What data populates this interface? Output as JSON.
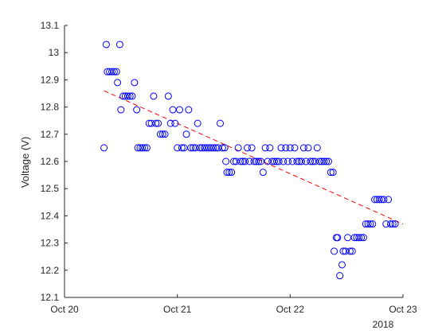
{
  "chart_data": {
    "type": "scatter",
    "title": "",
    "ylabel": "Voltage (V)",
    "xlabel": "",
    "x_secondary_label": "2018",
    "xlim_days": [
      20,
      23
    ],
    "ylim": [
      12.1,
      13.1
    ],
    "grid": false,
    "x_ticks": [
      {
        "day": 20,
        "label": "Oct 20"
      },
      {
        "day": 21,
        "label": "Oct 21"
      },
      {
        "day": 22,
        "label": "Oct 22"
      },
      {
        "day": 23,
        "label": "Oct 23"
      }
    ],
    "y_ticks": [
      {
        "value": 12.1,
        "label": "12.1"
      },
      {
        "value": 12.2,
        "label": "12.2"
      },
      {
        "value": 12.3,
        "label": "12.3"
      },
      {
        "value": 12.4,
        "label": "12.4"
      },
      {
        "value": 12.5,
        "label": "12.5"
      },
      {
        "value": 12.6,
        "label": "12.6"
      },
      {
        "value": 12.7,
        "label": "12.7"
      },
      {
        "value": 12.8,
        "label": "12.8"
      },
      {
        "value": 12.9,
        "label": "12.9"
      },
      {
        "value": 13.0,
        "label": "13"
      },
      {
        "value": 13.1,
        "label": "13.1"
      }
    ],
    "series": [
      {
        "marker": "circle",
        "color": "#0000ff",
        "points": [
          [
            20.35,
            12.65
          ],
          [
            20.37,
            13.03
          ],
          [
            20.38,
            12.93
          ],
          [
            20.4,
            12.93
          ],
          [
            20.42,
            12.93
          ],
          [
            20.44,
            12.93
          ],
          [
            20.46,
            12.93
          ],
          [
            20.47,
            12.89
          ],
          [
            20.49,
            13.03
          ],
          [
            20.5,
            12.79
          ],
          [
            20.52,
            12.84
          ],
          [
            20.54,
            12.84
          ],
          [
            20.56,
            12.84
          ],
          [
            20.58,
            12.84
          ],
          [
            20.6,
            12.84
          ],
          [
            20.62,
            12.89
          ],
          [
            20.64,
            12.79
          ],
          [
            20.65,
            12.65
          ],
          [
            20.67,
            12.65
          ],
          [
            20.69,
            12.65
          ],
          [
            20.71,
            12.65
          ],
          [
            20.73,
            12.65
          ],
          [
            20.75,
            12.74
          ],
          [
            20.77,
            12.74
          ],
          [
            20.79,
            12.84
          ],
          [
            20.81,
            12.74
          ],
          [
            20.83,
            12.74
          ],
          [
            20.85,
            12.7
          ],
          [
            20.87,
            12.7
          ],
          [
            20.89,
            12.7
          ],
          [
            20.92,
            12.84
          ],
          [
            20.94,
            12.74
          ],
          [
            20.96,
            12.79
          ],
          [
            20.98,
            12.74
          ],
          [
            21.0,
            12.65
          ],
          [
            21.02,
            12.79
          ],
          [
            21.04,
            12.65
          ],
          [
            21.06,
            12.65
          ],
          [
            21.08,
            12.7
          ],
          [
            21.1,
            12.79
          ],
          [
            21.12,
            12.65
          ],
          [
            21.14,
            12.65
          ],
          [
            21.16,
            12.65
          ],
          [
            21.18,
            12.74
          ],
          [
            21.2,
            12.65
          ],
          [
            21.22,
            12.65
          ],
          [
            21.24,
            12.65
          ],
          [
            21.26,
            12.65
          ],
          [
            21.28,
            12.65
          ],
          [
            21.3,
            12.65
          ],
          [
            21.32,
            12.65
          ],
          [
            21.34,
            12.65
          ],
          [
            21.36,
            12.65
          ],
          [
            21.38,
            12.74
          ],
          [
            21.4,
            12.65
          ],
          [
            21.42,
            12.65
          ],
          [
            21.43,
            12.6
          ],
          [
            21.44,
            12.56
          ],
          [
            21.46,
            12.56
          ],
          [
            21.48,
            12.56
          ],
          [
            21.5,
            12.6
          ],
          [
            21.52,
            12.6
          ],
          [
            21.54,
            12.65
          ],
          [
            21.56,
            12.6
          ],
          [
            21.58,
            12.6
          ],
          [
            21.6,
            12.6
          ],
          [
            21.62,
            12.65
          ],
          [
            21.64,
            12.6
          ],
          [
            21.66,
            12.65
          ],
          [
            21.68,
            12.6
          ],
          [
            21.7,
            12.6
          ],
          [
            21.72,
            12.6
          ],
          [
            21.74,
            12.6
          ],
          [
            21.76,
            12.56
          ],
          [
            21.78,
            12.65
          ],
          [
            21.8,
            12.6
          ],
          [
            21.82,
            12.65
          ],
          [
            21.84,
            12.6
          ],
          [
            21.86,
            12.6
          ],
          [
            21.88,
            12.6
          ],
          [
            21.9,
            12.6
          ],
          [
            21.92,
            12.65
          ],
          [
            21.94,
            12.6
          ],
          [
            21.96,
            12.65
          ],
          [
            21.98,
            12.6
          ],
          [
            22.0,
            12.65
          ],
          [
            22.02,
            12.6
          ],
          [
            22.04,
            12.65
          ],
          [
            22.06,
            12.6
          ],
          [
            22.08,
            12.6
          ],
          [
            22.1,
            12.6
          ],
          [
            22.12,
            12.65
          ],
          [
            22.14,
            12.6
          ],
          [
            22.16,
            12.65
          ],
          [
            22.18,
            12.6
          ],
          [
            22.2,
            12.6
          ],
          [
            22.22,
            12.6
          ],
          [
            22.24,
            12.65
          ],
          [
            22.26,
            12.6
          ],
          [
            22.28,
            12.6
          ],
          [
            22.3,
            12.6
          ],
          [
            22.32,
            12.6
          ],
          [
            22.34,
            12.6
          ],
          [
            22.36,
            12.56
          ],
          [
            22.38,
            12.56
          ],
          [
            22.39,
            12.27
          ],
          [
            22.41,
            12.32
          ],
          [
            22.42,
            12.32
          ],
          [
            22.44,
            12.18
          ],
          [
            22.46,
            12.22
          ],
          [
            22.47,
            12.27
          ],
          [
            22.49,
            12.27
          ],
          [
            22.51,
            12.32
          ],
          [
            22.53,
            12.27
          ],
          [
            22.55,
            12.27
          ],
          [
            22.57,
            12.32
          ],
          [
            22.59,
            12.32
          ],
          [
            22.61,
            12.32
          ],
          [
            22.63,
            12.32
          ],
          [
            22.65,
            12.32
          ],
          [
            22.67,
            12.37
          ],
          [
            22.69,
            12.37
          ],
          [
            22.71,
            12.37
          ],
          [
            22.73,
            12.37
          ],
          [
            22.75,
            12.46
          ],
          [
            22.77,
            12.46
          ],
          [
            22.79,
            12.46
          ],
          [
            22.81,
            12.46
          ],
          [
            22.83,
            12.46
          ],
          [
            22.85,
            12.37
          ],
          [
            22.87,
            12.46
          ],
          [
            22.89,
            12.37
          ],
          [
            22.91,
            12.37
          ],
          [
            22.93,
            12.37
          ]
        ]
      },
      {
        "type": "line",
        "style": "dashed",
        "color": "#ff0000",
        "points": [
          [
            20.35,
            12.86
          ],
          [
            23.0,
            12.37
          ]
        ]
      }
    ]
  }
}
